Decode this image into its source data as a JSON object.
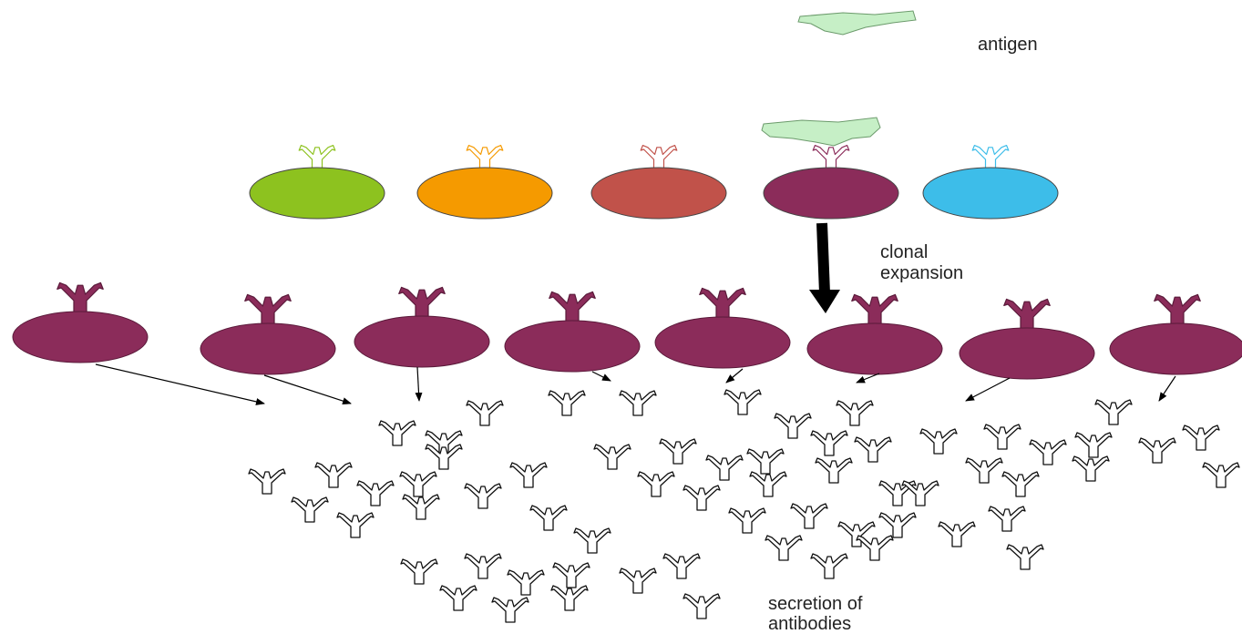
{
  "labels": {
    "antigen": "antigen",
    "clonal_expansion": [
      "clonal",
      "expansion"
    ],
    "secretion": [
      "secretion of",
      "antibodies"
    ]
  }
}
